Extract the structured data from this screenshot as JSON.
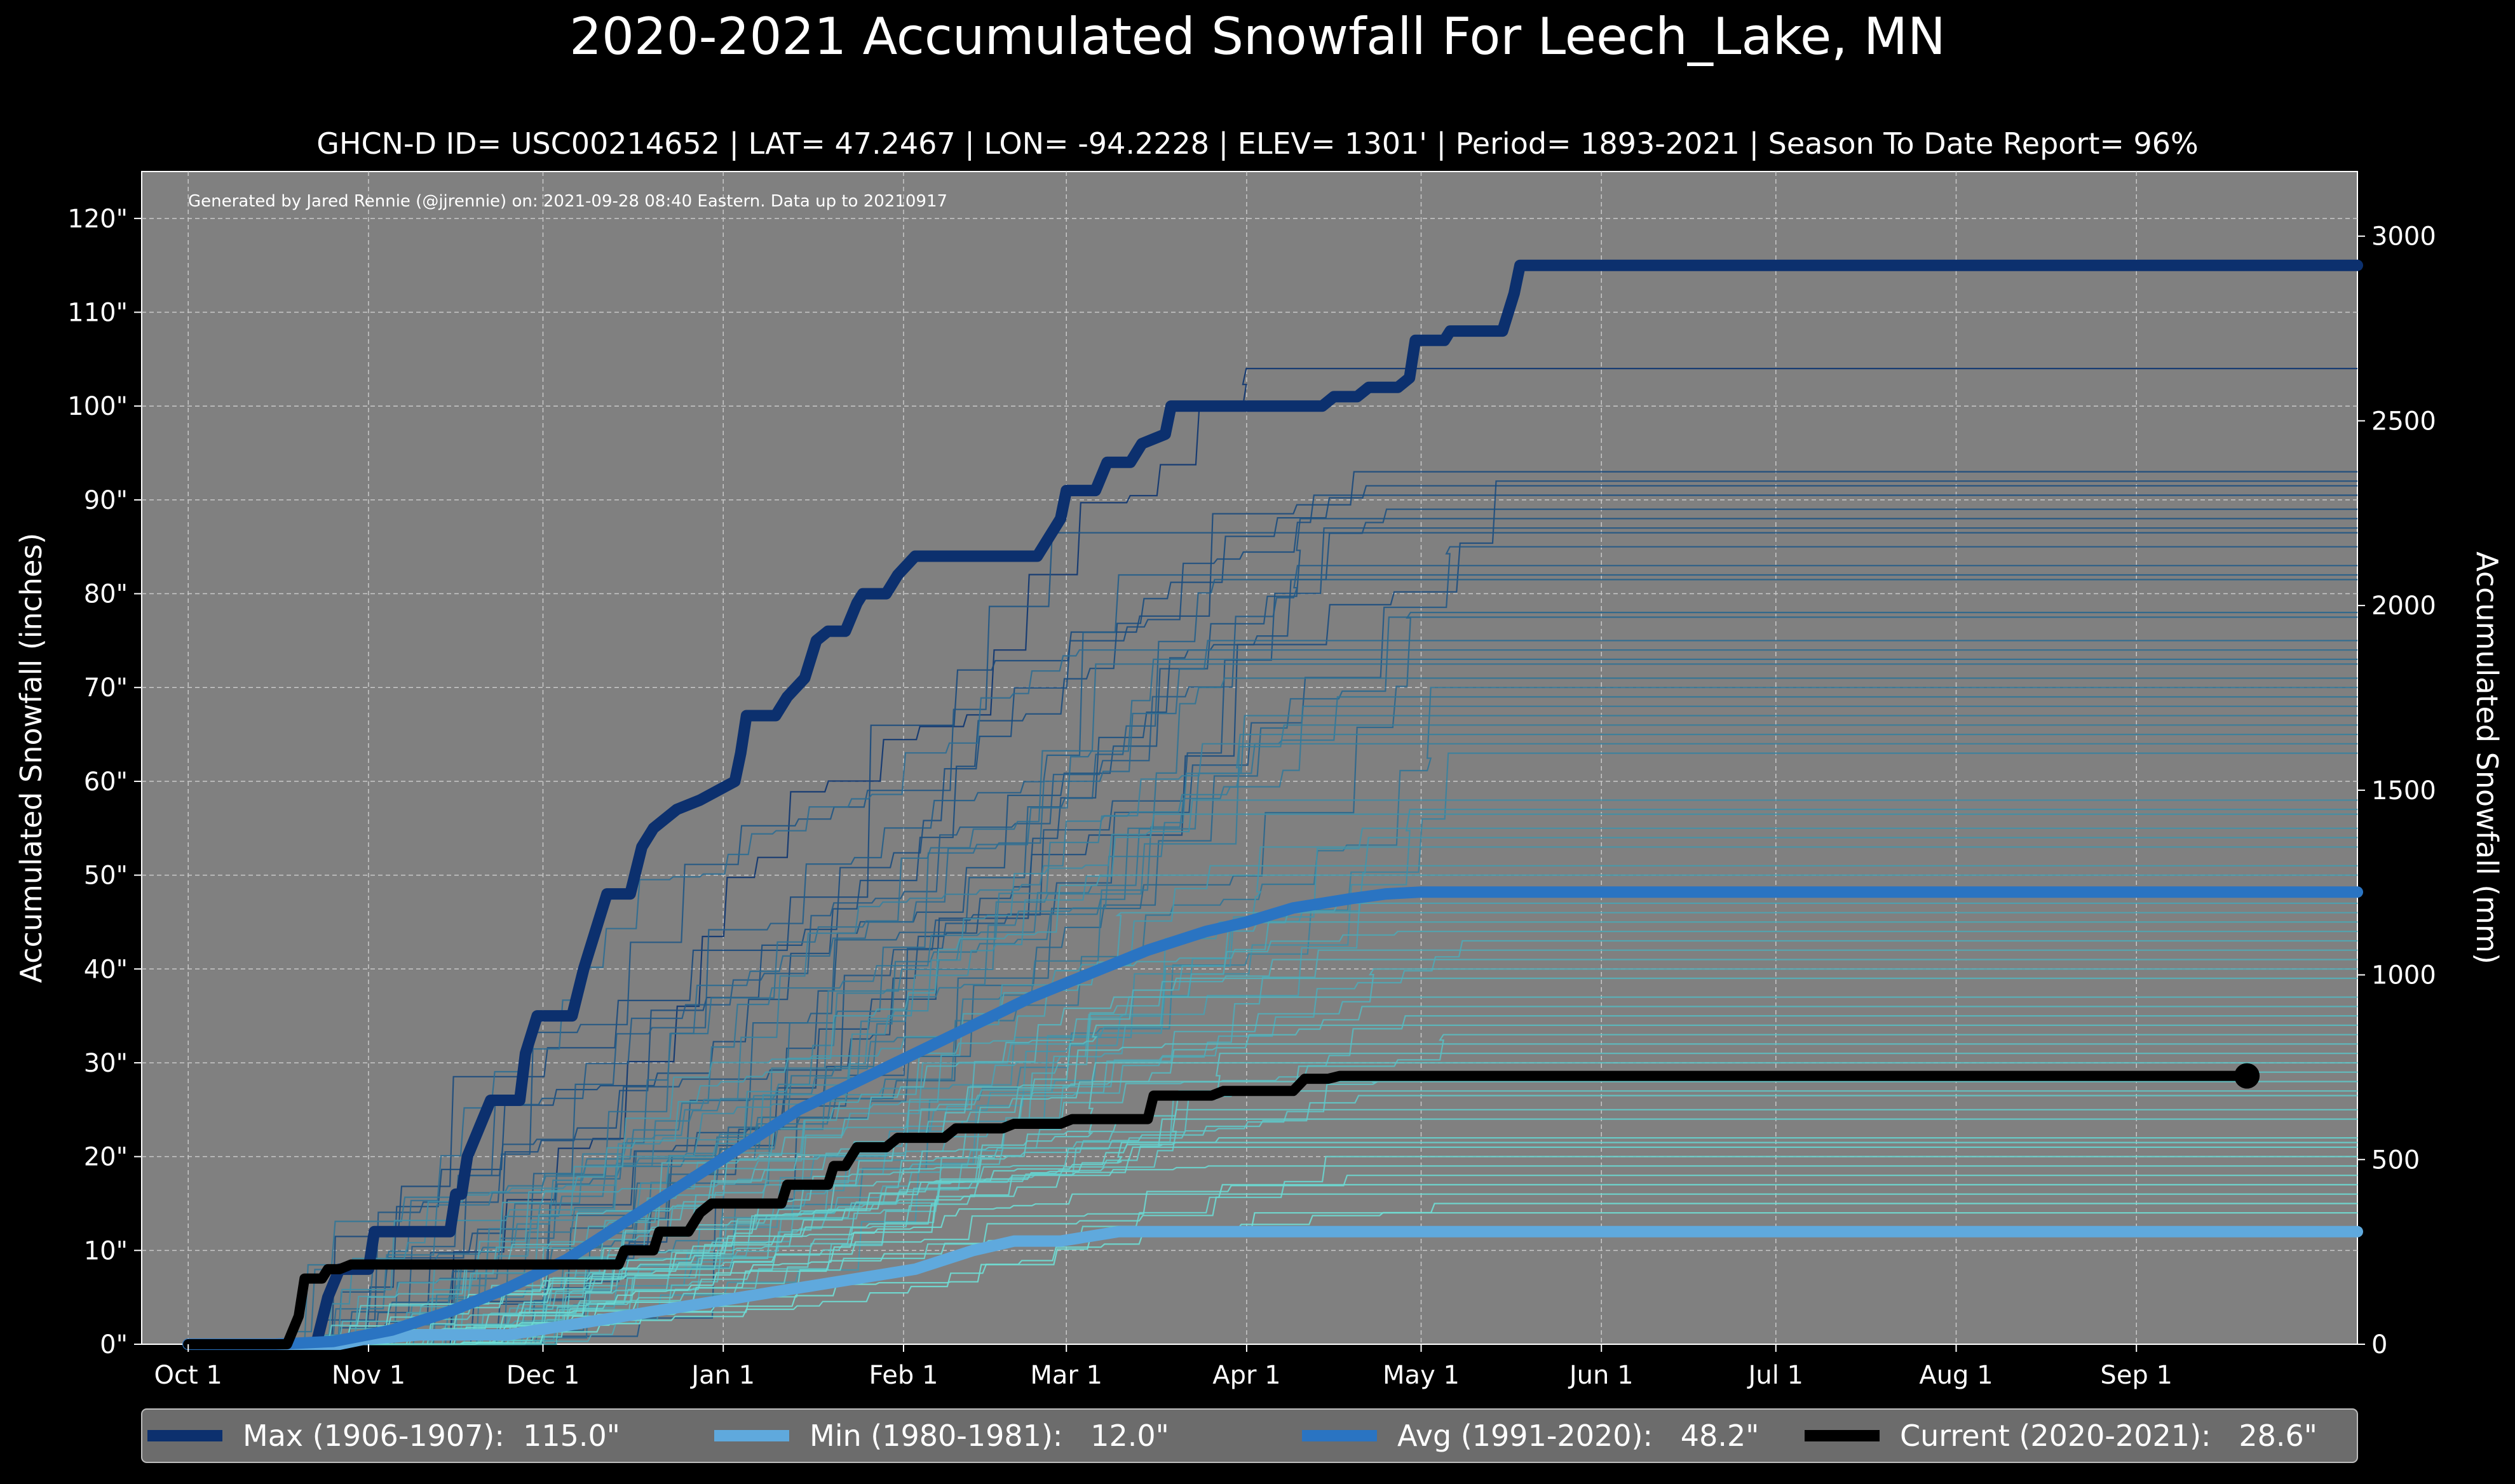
{
  "chart_data": {
    "type": "line",
    "title": "2020-2021 Accumulated Snowfall For Leech_Lake, MN",
    "subtitle": "GHCN-D ID= USC00214652 | LAT= 47.2467 | LON= -94.2228 | ELEV= 1301' | Period= 1893-2021 | Season To Date Report= 96%",
    "credit": "Generated by Jared Rennie (@jjrennie) on: 2021-09-28 08:40 Eastern. Data up to 20210917",
    "ylabel": "Accumulated Snowfall (inches)",
    "ylabel_right": "Accumulated Snowfall (mm)",
    "xlabel": "",
    "x_unit": "day of season (0 = Oct 1)",
    "xlim": [
      -8,
      373
    ],
    "ylim": [
      0,
      125
    ],
    "ylim_right_mm": [
      0,
      3175
    ],
    "grid": true,
    "x_ticks": [
      {
        "label": "Oct 1",
        "day": 0
      },
      {
        "label": "Nov 1",
        "day": 31
      },
      {
        "label": "Dec 1",
        "day": 61
      },
      {
        "label": "Jan 1",
        "day": 92
      },
      {
        "label": "Feb 1",
        "day": 123
      },
      {
        "label": "Mar 1",
        "day": 151
      },
      {
        "label": "Apr 1",
        "day": 182
      },
      {
        "label": "May 1",
        "day": 212
      },
      {
        "label": "Jun 1",
        "day": 243
      },
      {
        "label": "Jul 1",
        "day": 273
      },
      {
        "label": "Aug 1",
        "day": 304
      },
      {
        "label": "Sep 1",
        "day": 335
      }
    ],
    "y_ticks": [
      {
        "label": "0\"",
        "value": 0
      },
      {
        "label": "10\"",
        "value": 10
      },
      {
        "label": "20\"",
        "value": 20
      },
      {
        "label": "30\"",
        "value": 30
      },
      {
        "label": "40\"",
        "value": 40
      },
      {
        "label": "50\"",
        "value": 50
      },
      {
        "label": "60\"",
        "value": 60
      },
      {
        "label": "70\"",
        "value": 70
      },
      {
        "label": "80\"",
        "value": 80
      },
      {
        "label": "90\"",
        "value": 90
      },
      {
        "label": "100\"",
        "value": 100
      },
      {
        "label": "110\"",
        "value": 110
      },
      {
        "label": "120\"",
        "value": 120
      }
    ],
    "y_ticks_right": [
      {
        "label": "0",
        "value_mm": 0
      },
      {
        "label": "500",
        "value_mm": 500
      },
      {
        "label": "1000",
        "value_mm": 1000
      },
      {
        "label": "1500",
        "value_mm": 1500
      },
      {
        "label": "2000",
        "value_mm": 2000
      },
      {
        "label": "2500",
        "value_mm": 2500
      },
      {
        "label": "3000",
        "value_mm": 3000
      }
    ],
    "historical_seasons": {
      "description": "individual historical seasons (1893-2021), approximate final totals in inches",
      "final_totals": [
        104.0,
        93.0,
        92.0,
        91.5,
        90.5,
        89.0,
        88.0,
        87.0,
        86.5,
        85.0,
        83.0,
        82.0,
        81.5,
        78.0,
        77.5,
        75.0,
        74.0,
        73.0,
        72.5,
        71.0,
        70.0,
        69.0,
        68.0,
        67.0,
        66.0,
        65.0,
        64.0,
        63.0,
        58.0,
        57.0,
        56.5,
        55.0,
        54.0,
        53.0,
        51.0,
        50.0,
        48.0,
        47.0,
        46.0,
        45.0,
        44.0,
        43.0,
        42.0,
        41.0,
        40.0,
        39.0,
        37.0,
        36.0,
        35.0,
        34.0,
        33.0,
        32.0,
        31.0,
        30.0,
        29.0,
        28.0,
        27.0,
        26.5,
        25.0,
        24.0,
        22.0,
        21.5,
        21.0,
        20.0,
        19.0,
        18.0,
        17.0,
        16.0,
        15.0,
        14.0
      ],
      "color_high": "#0c3470",
      "color_low": "#6fe0d6"
    },
    "series": [
      {
        "name": "Max (1906-1907)",
        "legend_label": "Max (1906-1907):  115.0\"",
        "color": "#0c306e",
        "points": [
          [
            0,
            0
          ],
          [
            22,
            0
          ],
          [
            24,
            5
          ],
          [
            26,
            8
          ],
          [
            31,
            8
          ],
          [
            32,
            12
          ],
          [
            45,
            12
          ],
          [
            46,
            16
          ],
          [
            47,
            16
          ],
          [
            48,
            20
          ],
          [
            50,
            23
          ],
          [
            52,
            26
          ],
          [
            57,
            26
          ],
          [
            58,
            31
          ],
          [
            60,
            35
          ],
          [
            66,
            35
          ],
          [
            68,
            40
          ],
          [
            70,
            44
          ],
          [
            72,
            48
          ],
          [
            76,
            48
          ],
          [
            78,
            53
          ],
          [
            80,
            55
          ],
          [
            82,
            56
          ],
          [
            84,
            57
          ],
          [
            88,
            58
          ],
          [
            94,
            60
          ],
          [
            95,
            63
          ],
          [
            96,
            67
          ],
          [
            101,
            67
          ],
          [
            103,
            69
          ],
          [
            106,
            71
          ],
          [
            108,
            75
          ],
          [
            110,
            76
          ],
          [
            113,
            76
          ],
          [
            115,
            79
          ],
          [
            116,
            80
          ],
          [
            120,
            80
          ],
          [
            122,
            82
          ],
          [
            125,
            84
          ],
          [
            136,
            84
          ],
          [
            146,
            84
          ],
          [
            148,
            86
          ],
          [
            150,
            88
          ],
          [
            151,
            91
          ],
          [
            156,
            91
          ],
          [
            158,
            94
          ],
          [
            162,
            94
          ],
          [
            164,
            96
          ],
          [
            168,
            97
          ],
          [
            169,
            100
          ],
          [
            195,
            100
          ],
          [
            197,
            101
          ],
          [
            201,
            101
          ],
          [
            203,
            102
          ],
          [
            208,
            102
          ],
          [
            210,
            103
          ],
          [
            211,
            107
          ],
          [
            216,
            107
          ],
          [
            217,
            108
          ],
          [
            220,
            108
          ],
          [
            223,
            108
          ],
          [
            226,
            108
          ],
          [
            228,
            112
          ],
          [
            229,
            115
          ],
          [
            373,
            115
          ]
        ],
        "final_value": 115.0
      },
      {
        "name": "Min (1980-1981)",
        "legend_label": "Min (1980-1981):   12.0\"",
        "color": "#5fa9dd",
        "points": [
          [
            0,
            0
          ],
          [
            26,
            0
          ],
          [
            30,
            0.5
          ],
          [
            40,
            1
          ],
          [
            55,
            1
          ],
          [
            65,
            2
          ],
          [
            75,
            3
          ],
          [
            85,
            4
          ],
          [
            95,
            5
          ],
          [
            105,
            6
          ],
          [
            115,
            7
          ],
          [
            125,
            8
          ],
          [
            135,
            10
          ],
          [
            142,
            11
          ],
          [
            150,
            11
          ],
          [
            160,
            12
          ],
          [
            373,
            12
          ]
        ],
        "final_value": 12.0
      },
      {
        "name": "Avg (1991-2020)",
        "legend_label": "Avg (1991-2020):   48.2\"",
        "color": "#2a74c2",
        "points": [
          [
            0,
            0
          ],
          [
            15,
            0
          ],
          [
            25,
            0.3
          ],
          [
            35,
            1.5
          ],
          [
            45,
            3.5
          ],
          [
            55,
            6
          ],
          [
            65,
            9
          ],
          [
            75,
            13
          ],
          [
            85,
            17
          ],
          [
            95,
            21
          ],
          [
            105,
            25
          ],
          [
            115,
            28
          ],
          [
            125,
            31
          ],
          [
            135,
            34
          ],
          [
            145,
            37
          ],
          [
            155,
            39.5
          ],
          [
            165,
            42
          ],
          [
            175,
            44
          ],
          [
            182,
            45
          ],
          [
            190,
            46.5
          ],
          [
            200,
            47.5
          ],
          [
            206,
            48
          ],
          [
            212,
            48.2
          ],
          [
            373,
            48.2
          ]
        ],
        "final_value": 48.2
      },
      {
        "name": "Current (2020-2021)",
        "legend_label": "Current (2020-2021):   28.6\"",
        "color": "#000000",
        "points": [
          [
            0,
            0
          ],
          [
            17,
            0
          ],
          [
            19,
            3
          ],
          [
            20,
            7
          ],
          [
            23,
            7
          ],
          [
            24,
            8
          ],
          [
            26,
            8
          ],
          [
            28,
            8.5
          ],
          [
            55,
            8.5
          ],
          [
            65,
            8.5
          ],
          [
            74,
            8.5
          ],
          [
            75,
            10
          ],
          [
            80,
            10
          ],
          [
            81,
            12
          ],
          [
            86,
            12
          ],
          [
            88,
            14
          ],
          [
            90,
            15
          ],
          [
            102,
            15
          ],
          [
            103,
            17
          ],
          [
            110,
            17
          ],
          [
            111,
            19
          ],
          [
            113,
            19
          ],
          [
            115,
            21
          ],
          [
            120,
            21
          ],
          [
            122,
            22
          ],
          [
            130,
            22
          ],
          [
            132,
            23
          ],
          [
            140,
            23
          ],
          [
            142,
            23.5
          ],
          [
            150,
            23.5
          ],
          [
            152,
            24
          ],
          [
            165,
            24
          ],
          [
            166,
            26.5
          ],
          [
            176,
            26.5
          ],
          [
            178,
            27
          ],
          [
            190,
            27
          ],
          [
            192,
            28.3
          ],
          [
            196,
            28.3
          ],
          [
            198,
            28.6
          ],
          [
            354,
            28.6
          ]
        ],
        "final_value": 28.6
      }
    ],
    "current_marker": {
      "day": 354,
      "value": 28.6
    },
    "legend": {
      "placement": "bottom"
    }
  }
}
